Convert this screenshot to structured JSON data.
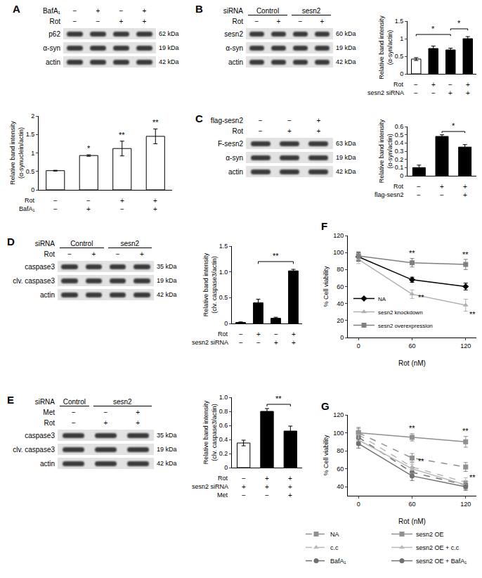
{
  "blots": [
    {
      "panel": "A",
      "rows": [
        {
          "label": "BafA₁",
          "signs": [
            "−",
            "+",
            "−",
            "+"
          ]
        },
        {
          "label": "Rot",
          "signs": [
            "−",
            "−",
            "+",
            "+"
          ]
        }
      ],
      "bands": [
        {
          "label": "p62",
          "size": "62 kDa"
        },
        {
          "label": "α-syn",
          "size": "19 kDa"
        },
        {
          "label": "actin",
          "size": "42 kDa"
        }
      ]
    },
    {
      "panel": "B",
      "rows": [
        {
          "label": "siRNA",
          "groups": [
            "Control",
            "Control",
            "sesn2",
            "sesn2"
          ]
        },
        {
          "label": "Rot",
          "signs": [
            "−",
            "+",
            "−",
            "+"
          ]
        }
      ],
      "bands": [
        {
          "label": "sesn2",
          "size": "60 kDa"
        },
        {
          "label": "α-syn",
          "size": "19 kDa"
        },
        {
          "label": "actin",
          "size": "42 kDa"
        }
      ]
    },
    {
      "panel": "C",
      "rows": [
        {
          "label": "flag-sesn2",
          "signs": [
            "−",
            "−",
            "+"
          ]
        },
        {
          "label": "Rot",
          "signs": [
            "−",
            "+",
            "+"
          ]
        }
      ],
      "bands": [
        {
          "label": "F-sesn2",
          "size": "63 kDa"
        },
        {
          "label": "α-syn",
          "size": "19 kDa"
        },
        {
          "label": "actin",
          "size": "42 kDa"
        }
      ]
    },
    {
      "panel": "D",
      "rows": [
        {
          "label": "siRNA",
          "groups": [
            "Control",
            "Control",
            "sesn2",
            "sesn2"
          ]
        },
        {
          "label": "Rot",
          "signs": [
            "−",
            "+",
            "−",
            "+"
          ]
        }
      ],
      "bands": [
        {
          "label": "caspase3",
          "size": "35 kDa"
        },
        {
          "label": "clv. caspase3",
          "size": "19 kDa"
        },
        {
          "label": "actin",
          "size": "42 kDa"
        }
      ]
    },
    {
      "panel": "E",
      "rows": [
        {
          "label": "siRNA",
          "groups": [
            "Control",
            "sesn2",
            "sesn2"
          ]
        },
        {
          "label": "Met",
          "signs": [
            "−",
            "−",
            "+"
          ]
        },
        {
          "label": "Rot",
          "signs": [
            "−",
            "+",
            "+"
          ]
        }
      ],
      "bands": [
        {
          "label": "caspase3",
          "size": "35 kDa"
        },
        {
          "label": "clv. caspase3",
          "size": "19 kDa"
        },
        {
          "label": "actin",
          "size": "42 kDa"
        }
      ]
    }
  ],
  "chart_data": [
    {
      "type": "bar",
      "y_label": "Relative band intensity (α-synuclein/actin)",
      "categories": [
        null,
        null,
        null,
        null
      ],
      "values": [
        0.52,
        0.93,
        1.12,
        1.45
      ],
      "errors": [
        0.01,
        0.02,
        0.2,
        0.2
      ],
      "colors": [
        "#ffffff",
        "#ffffff",
        "#ffffff",
        "#ffffff"
      ],
      "marker": "hatched",
      "ylim": [
        0,
        2
      ],
      "yticks": [
        0,
        0.5,
        1,
        1.5,
        2
      ],
      "grid": false,
      "annotations": [
        {
          "x": 1,
          "y": 0.97,
          "text": "*"
        },
        {
          "x": 2,
          "y": 1.34,
          "text": "**"
        },
        {
          "x": 3,
          "y": 1.67,
          "text": "**"
        }
      ],
      "table": [
        {
          "label": "Rot",
          "signs": [
            "−",
            "−",
            "+",
            "+"
          ]
        },
        {
          "label": "BafA₁",
          "signs": [
            "−",
            "+",
            "−",
            "+"
          ]
        }
      ]
    },
    {
      "type": "bar",
      "y_label": "Relative band intensity (α-syn/actin)",
      "categories": [
        null,
        null,
        null,
        null
      ],
      "values": [
        0.42,
        0.72,
        0.68,
        1.0
      ],
      "errors": [
        0.04,
        0.07,
        0.05,
        0.06
      ],
      "colors": [
        "#ffffff",
        "#000000",
        "#000000",
        "#000000"
      ],
      "ylim": [
        0,
        1.5
      ],
      "yticks": [
        0,
        0.5,
        1,
        1.5
      ],
      "grid": false,
      "brackets": [
        {
          "from": 0,
          "to": 2,
          "y": 1.12,
          "text": "*"
        },
        {
          "from": 2,
          "to": 3,
          "y": 1.28,
          "text": "*"
        }
      ],
      "table": [
        {
          "label": "Rot",
          "signs": [
            "−",
            "+",
            "−",
            "+"
          ]
        },
        {
          "label": "sesn2 siRNA",
          "signs": [
            "−",
            "−",
            "+",
            "+"
          ]
        }
      ]
    },
    {
      "type": "bar",
      "y_label": "Relative band intensity (α-syn/actin)",
      "categories": [
        null,
        null,
        null
      ],
      "values": [
        0.1,
        0.48,
        0.35
      ],
      "errors": [
        0.03,
        0.02,
        0.03
      ],
      "colors": [
        "#000000",
        "#000000",
        "#000000"
      ],
      "ylim": [
        0,
        0.6
      ],
      "yticks": [
        0,
        0.1,
        0.2,
        0.3,
        0.4,
        0.5,
        0.6
      ],
      "grid": false,
      "brackets": [
        {
          "from": 1,
          "to": 2,
          "y": 0.54,
          "text": "*"
        }
      ],
      "table": [
        {
          "label": "Rot",
          "signs": [
            "−",
            "+",
            "+"
          ]
        },
        {
          "label": "flag-sesn2",
          "signs": [
            "−",
            "−",
            "+"
          ]
        }
      ]
    },
    {
      "type": "bar",
      "y_label": "Relative band intensity (clv. caspase3/actin)",
      "categories": [
        null,
        null,
        null,
        null
      ],
      "values": [
        0.02,
        0.4,
        0.1,
        1.02
      ],
      "errors": [
        0.01,
        0.07,
        0.02,
        0.03
      ],
      "colors": [
        "#000000",
        "#000000",
        "#000000",
        "#000000"
      ],
      "ylim": [
        0,
        1.5
      ],
      "yticks": [
        0,
        0.5,
        {
          "value": 1,
          "label": "1.0"
        },
        1.5
      ],
      "grid": false,
      "brackets": [
        {
          "from": 1,
          "to": 3,
          "y": 1.2,
          "text": "**"
        }
      ],
      "table": [
        {
          "label": "Rot",
          "signs": [
            "−",
            "+",
            "−",
            "+"
          ]
        },
        {
          "label": "sesn2 siRNA",
          "signs": [
            "−",
            "−",
            "+",
            "+"
          ]
        }
      ]
    },
    {
      "type": "bar",
      "y_label": "Relative band intensity (clv. caspase3/actin)",
      "categories": [
        null,
        null,
        null
      ],
      "values": [
        0.35,
        0.8,
        0.52
      ],
      "errors": [
        0.04,
        0.04,
        0.07
      ],
      "colors": [
        "#ffffff",
        "#000000",
        "#000000"
      ],
      "ylim": [
        0,
        1
      ],
      "yticks": [
        0,
        0.2,
        0.4,
        0.6,
        0.8,
        {
          "value": 1,
          "label": "1.0"
        }
      ],
      "grid": false,
      "brackets": [
        {
          "from": 1,
          "to": 2,
          "y": 0.9,
          "text": "**"
        }
      ],
      "table": [
        {
          "label": "Rot",
          "signs": [
            "−",
            "+",
            "+"
          ]
        },
        {
          "label": "sesn2 siRNA",
          "signs": [
            "+",
            "+",
            "+"
          ]
        },
        {
          "label": "Met",
          "signs": [
            "−",
            "−",
            "+"
          ]
        }
      ]
    },
    {
      "type": "line",
      "title": "F",
      "x_label": "Rot (nM)",
      "y_label": "% Cell viability",
      "x": [
        0,
        60,
        120
      ],
      "xlim": [
        -12,
        132
      ],
      "xticks": [
        0,
        60,
        120
      ],
      "ylim": [
        0,
        120
      ],
      "yticks": [
        0,
        20,
        40,
        60,
        80,
        100,
        120
      ],
      "grid": false,
      "legend": "lower left",
      "series": [
        {
          "name": "NA",
          "color": "#000000",
          "marker": "diamond",
          "line_style": "solid",
          "values": [
            95,
            68,
            60
          ],
          "errors": [
            5,
            3,
            4
          ]
        },
        {
          "name": "sesn2 knockdown",
          "color": "#b0b0b0",
          "marker": "triangle-up",
          "line_style": "solid",
          "values": [
            92,
            51,
            38
          ],
          "errors": [
            5,
            5,
            7
          ]
        },
        {
          "name": "sesn2 overexpression",
          "color": "#808080",
          "marker": "square",
          "line_style": "solid",
          "values": [
            96,
            88,
            86
          ],
          "errors": [
            5,
            5,
            6
          ]
        }
      ],
      "annotations": [
        {
          "x": 60,
          "y": 99,
          "text": "**"
        },
        {
          "x": 120,
          "y": 98,
          "text": "**"
        },
        {
          "x": 70,
          "y": 47,
          "text": "**"
        },
        {
          "x": 128,
          "y": 27,
          "text": "**"
        }
      ]
    },
    {
      "type": "line",
      "title": "G",
      "x_label": "Rot (nM)",
      "y_label": "% Cell viability",
      "x": [
        0,
        60,
        120
      ],
      "xlim": [
        -12,
        132
      ],
      "xticks": [
        0,
        60,
        120
      ],
      "ylim": [
        30,
        120
      ],
      "yticks": [
        40,
        60,
        80,
        100,
        120
      ],
      "grid": false,
      "legend": "bottom",
      "series": [
        {
          "name": "NA",
          "color": "#909090",
          "marker": "square",
          "line_style": "dash",
          "values": [
            100,
            72,
            62
          ],
          "errors": [
            6,
            5,
            5
          ]
        },
        {
          "name": "c.c",
          "color": "#b8b8b8",
          "marker": "triangle-up",
          "line_style": "dash",
          "values": [
            98,
            62,
            45
          ],
          "errors": [
            5,
            6,
            5
          ]
        },
        {
          "name": "BafA₁",
          "color": "#707070",
          "marker": "circle",
          "line_style": "dash",
          "values": [
            95,
            56,
            42
          ],
          "errors": [
            5,
            5,
            4
          ]
        },
        {
          "name": "sesn2 OE",
          "color": "#909090",
          "marker": "square",
          "line_style": "solid",
          "values": [
            100,
            95,
            90
          ],
          "errors": [
            5,
            4,
            6
          ]
        },
        {
          "name": "sesn2 OE + c.c",
          "color": "#b8b8b8",
          "marker": "triangle-up",
          "line_style": "solid",
          "values": [
            92,
            60,
            42
          ],
          "errors": [
            6,
            5,
            5
          ]
        },
        {
          "name": "sesn2 OE + BafA₁",
          "color": "#707070",
          "marker": "circle",
          "line_style": "solid",
          "values": [
            88,
            52,
            40
          ],
          "errors": [
            5,
            5,
            4
          ]
        }
      ],
      "annotations": [
        {
          "x": 60,
          "y": 105,
          "text": "**"
        },
        {
          "x": 120,
          "y": 102,
          "text": "**"
        },
        {
          "x": 70,
          "y": 68,
          "text": "**"
        },
        {
          "x": 128,
          "y": 50,
          "text": "**"
        }
      ]
    }
  ]
}
